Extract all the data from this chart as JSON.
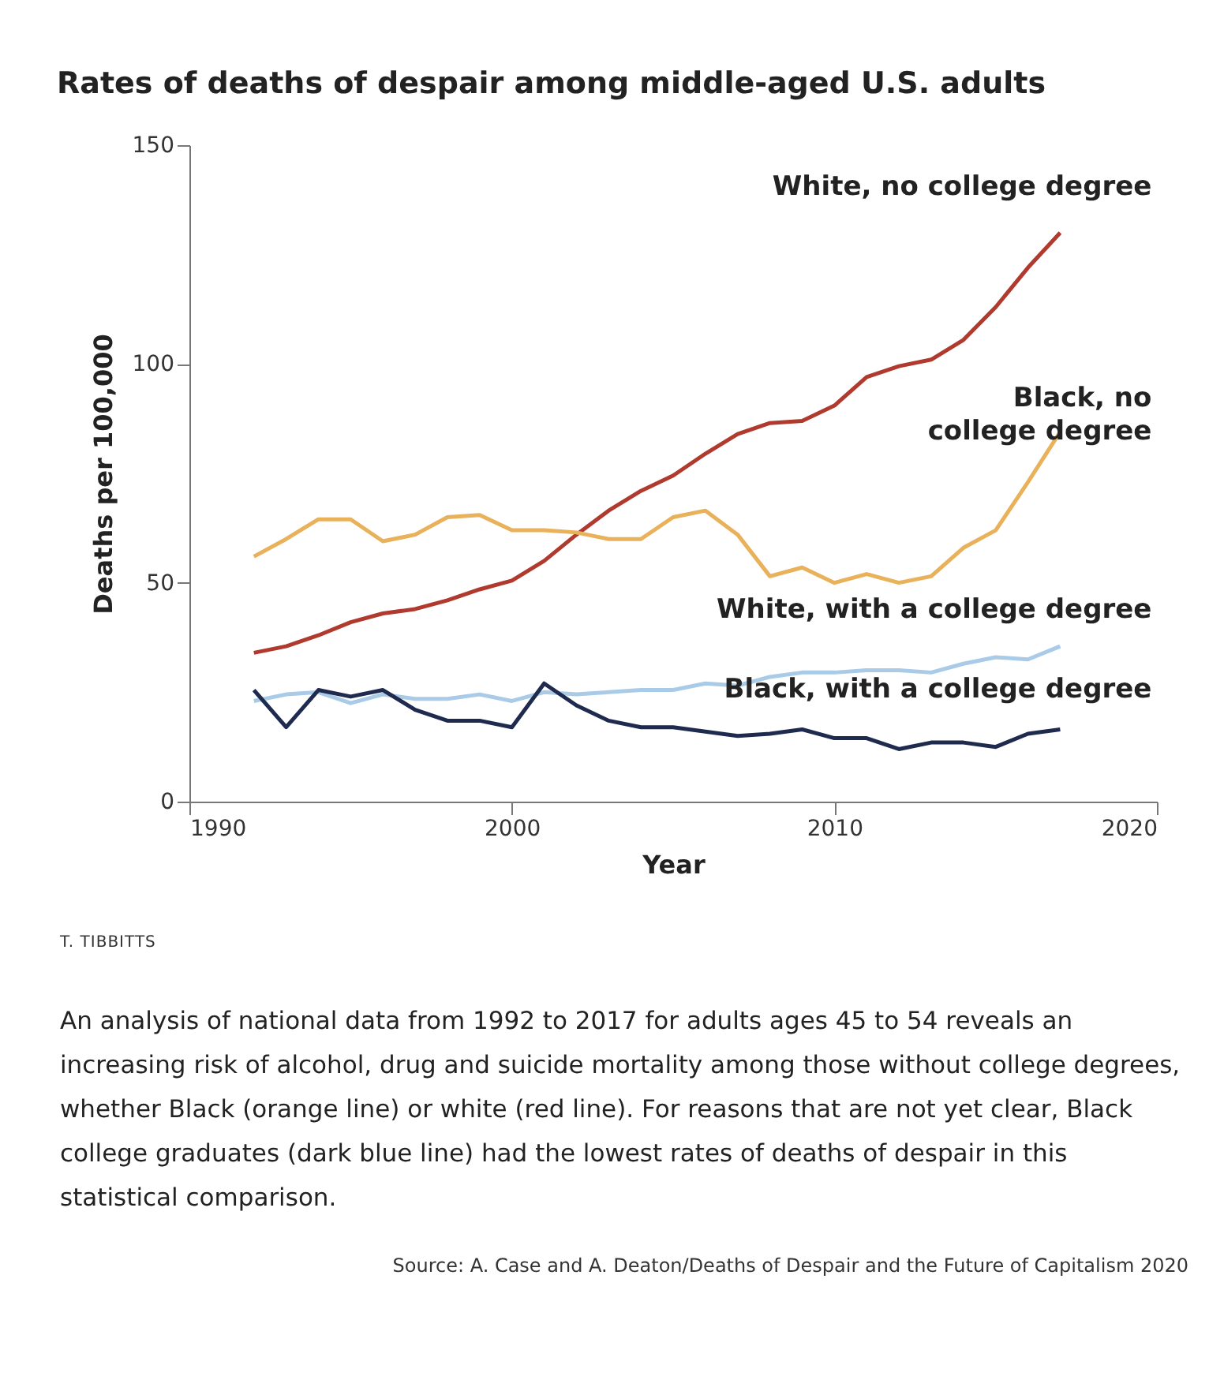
{
  "chart_data": {
    "type": "line",
    "title": "Rates of deaths of despair among middle-aged U.S. adults",
    "xlabel": "Year",
    "ylabel": "Deaths per 100,000",
    "x": [
      1992,
      1993,
      1994,
      1995,
      1996,
      1997,
      1998,
      1999,
      2000,
      2001,
      2002,
      2003,
      2004,
      2005,
      2006,
      2007,
      2008,
      2009,
      2010,
      2011,
      2012,
      2013,
      2014,
      2015,
      2016,
      2017
    ],
    "series": [
      {
        "name": "White, no college degree",
        "color": "#b03a2e",
        "values": [
          34,
          35.5,
          38,
          41,
          43,
          44,
          46,
          48.5,
          50.5,
          55,
          61,
          66.5,
          71,
          74.5,
          79.5,
          84,
          86.5,
          87,
          90.5,
          97,
          99.5,
          101,
          105.5,
          113,
          122,
          130
        ]
      },
      {
        "name": "Black, no college degree",
        "color": "#e8b15a",
        "values": [
          56,
          60,
          64.5,
          64.5,
          59.5,
          61,
          65,
          65.5,
          62,
          62,
          61.5,
          60,
          60,
          65,
          66.5,
          61,
          51.5,
          53.5,
          50,
          52,
          50,
          51.5,
          58,
          62,
          73,
          84.5
        ]
      },
      {
        "name": "White, with a college degree",
        "color": "#a9cbe8",
        "values": [
          23,
          24.5,
          25,
          22.5,
          24.5,
          23.5,
          23.5,
          24.5,
          23,
          25,
          24.5,
          25,
          25.5,
          25.5,
          27,
          26.5,
          28.5,
          29.5,
          29.5,
          30,
          30,
          29.5,
          31.5,
          33,
          32.5,
          35.5
        ]
      },
      {
        "name": "Black, with a college degree",
        "color": "#1f2a4f",
        "values": [
          25.5,
          17,
          25.5,
          24,
          25.5,
          21,
          18.5,
          18.5,
          17,
          27,
          22,
          18.5,
          17,
          17,
          16,
          15,
          15.5,
          16.5,
          14.5,
          14.5,
          12,
          13.5,
          13.5,
          12.5,
          15.5,
          16.5
        ]
      }
    ],
    "xlim": [
      1990,
      2020
    ],
    "xticks": [
      1990,
      2000,
      2010,
      2020
    ],
    "ylim": [
      0,
      150
    ],
    "yticks": [
      0,
      50,
      100,
      150
    ],
    "annotations": [
      "T. TIBBITTS",
      "An analysis of national data from 1992 to 2017 for adults ages 45 to 54 reveals an increasing risk of alcohol, drug and suicide mortality among those without college degrees, whether Black (orange line) or white (red line). For reasons that are not yet clear, Black college graduates (dark blue line) had the lowest rates of deaths of despair in this statistical comparison.",
      "Source: A. Case and A. Deaton/Deaths of Despair and the Future of Capitalism 2020"
    ]
  }
}
